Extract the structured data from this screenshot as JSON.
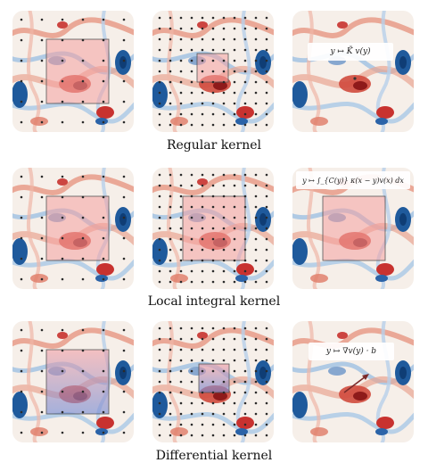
{
  "rows": [
    {
      "label": "Regular kernel",
      "formula": "y ↦ K̃ v(y)"
    },
    {
      "label": "Local integral kernel",
      "formula": "y ↦ ∫_{C(y)} κ(x − y)v(x) dx"
    },
    {
      "label": "Differential kernel",
      "formula": "y ↦ ∇v(y) · b"
    }
  ],
  "colors": {
    "positive": "#c8322f",
    "negative": "#1f5a9c",
    "overlay_regular": "#f4a0a0",
    "overlay_differential": "#7c8fd6"
  }
}
